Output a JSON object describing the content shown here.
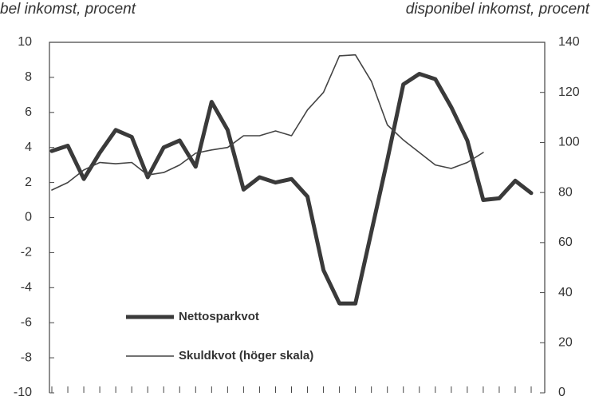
{
  "chart_data": {
    "type": "line",
    "y_label": "bel inkomst, procent",
    "y2_label": "disponibel inkomst, procent",
    "categories": [
      null,
      null,
      null,
      null,
      null,
      null,
      null,
      null,
      null,
      null,
      null,
      null,
      null,
      null,
      null,
      null,
      null,
      null,
      null,
      null,
      null,
      null,
      null,
      null,
      null,
      null,
      null,
      null,
      null,
      null,
      null
    ],
    "ylim": [
      -10,
      10
    ],
    "yticks": [
      -10,
      -8,
      -6,
      -4,
      -2,
      0,
      2,
      4,
      6,
      8,
      10
    ],
    "y2lim": [
      0,
      140
    ],
    "y2ticks": [
      0,
      20,
      40,
      60,
      80,
      100,
      120,
      140
    ],
    "legend": "lower left",
    "series": [
      {
        "name": "Nettosparkvot",
        "color": "#3a3a3a",
        "width": 5,
        "values": [
          3.8,
          4.1,
          2.2,
          3.7,
          5.0,
          4.6,
          2.3,
          4.0,
          4.4,
          2.9,
          6.6,
          5.0,
          1.6,
          2.3,
          2.0,
          2.2,
          1.2,
          -3.0,
          -4.9,
          -4.9,
          -0.8,
          3.3,
          7.6,
          8.2,
          7.9,
          6.3,
          4.4,
          1.0,
          1.1,
          2.1,
          1.4
        ]
      },
      {
        "name": "Skuldkvot (höger skala)",
        "color": "#444444",
        "width": 1.6,
        "axis": "y2",
        "values": [
          81,
          84,
          89,
          92,
          91.5,
          92,
          87,
          88,
          91,
          95.7,
          97,
          98,
          102.7,
          102.7,
          104.6,
          102.7,
          113,
          120,
          134.6,
          135,
          124.4,
          107,
          101,
          96,
          91,
          89.6,
          92,
          96,
          null,
          null,
          null
        ]
      }
    ]
  }
}
